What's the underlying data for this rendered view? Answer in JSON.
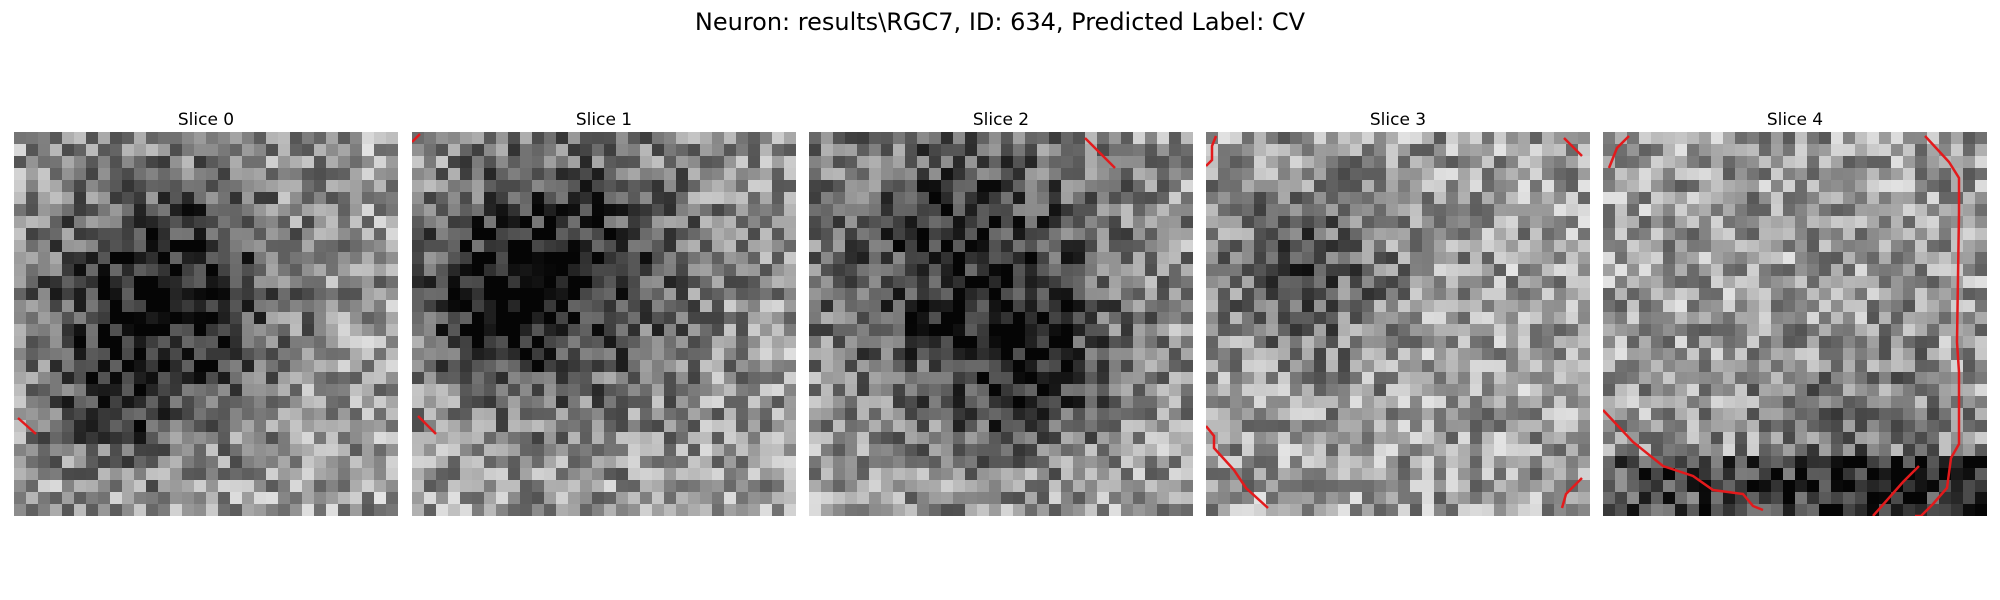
{
  "figure": {
    "title": "Neuron: results\\RGC7, ID: 634, Predicted Label: CV",
    "contour_color": "#e31a1c",
    "colormap": "gray",
    "panels": [
      {
        "label": "Slice 0",
        "seed": 11
      },
      {
        "label": "Slice 1",
        "seed": 23
      },
      {
        "label": "Slice 2",
        "seed": 37
      },
      {
        "label": "Slice 3",
        "seed": 41
      },
      {
        "label": "Slice 4",
        "seed": 59
      }
    ]
  }
}
